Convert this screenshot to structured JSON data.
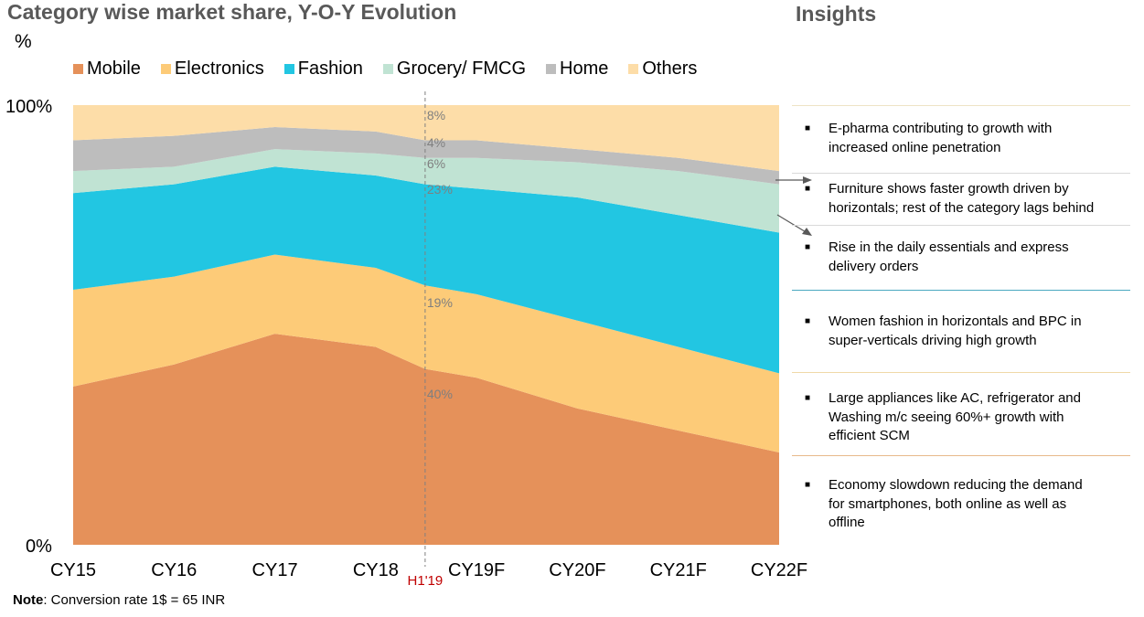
{
  "title": "Category wise market share, Y-O-Y Evolution",
  "unit": "%",
  "chart_data": {
    "type": "area",
    "stacked": true,
    "title": "Category wise market share, Y-O-Y Evolution",
    "ylabel": "%",
    "ylim": [
      0,
      100
    ],
    "yticks": [
      "0%",
      "100%"
    ],
    "categories": [
      "CY15",
      "CY16",
      "CY17",
      "CY18",
      "H1'19",
      "CY19F",
      "CY20F",
      "CY21F",
      "CY22F"
    ],
    "highlight_category": "H1'19",
    "highlight_color": "#C00000",
    "legend_position": "top",
    "grid": false,
    "series": [
      {
        "name": "Mobile",
        "color": "#E5915A",
        "values": [
          36,
          41,
          48,
          45,
          40,
          38,
          31,
          26,
          21
        ]
      },
      {
        "name": "Electronics",
        "color": "#FDCB78",
        "values": [
          22,
          20,
          18,
          18,
          19,
          19,
          20,
          19,
          18
        ]
      },
      {
        "name": "Fashion",
        "color": "#22C6E2",
        "values": [
          22,
          21,
          20,
          21,
          23,
          24,
          28,
          30,
          32
        ]
      },
      {
        "name": "Grocery/ FMCG",
        "color": "#C0E3D3",
        "values": [
          5,
          4,
          4,
          5,
          6,
          7,
          8,
          10,
          11
        ]
      },
      {
        "name": "Home",
        "color": "#BDBDBD",
        "values": [
          7,
          7,
          5,
          5,
          4,
          4,
          3,
          3,
          3
        ]
      },
      {
        "name": "Others",
        "color": "#FDDDA8",
        "values": [
          8,
          7,
          5,
          6,
          8,
          8,
          10,
          12,
          15
        ]
      }
    ],
    "data_labels": [
      "40%",
      "19%",
      "23%",
      "6%",
      "4%",
      "8%"
    ]
  },
  "note": {
    "label": "Note",
    "text": ": Conversion rate 1$ = 65 INR"
  },
  "insights": {
    "title": "Insights",
    "items": [
      {
        "lines": [
          "E-pharma contributing to growth with",
          "increased online penetration"
        ]
      },
      {
        "lines": [
          "Furniture shows faster growth driven by",
          "horizontals; rest of the category lags behind"
        ]
      },
      {
        "lines": [
          "Rise in the daily essentials and express",
          "delivery orders"
        ]
      },
      {
        "lines": [
          "Women fashion in horizontals and BPC in",
          "super-verticals driving high growth"
        ]
      },
      {
        "lines": [
          "Large appliances like AC, refrigerator and",
          "Washing m/c seeing 60%+ growth with",
          "efficient SCM"
        ]
      },
      {
        "lines": [
          "Economy slowdown reducing the demand",
          "for smartphones, both online as well as",
          "offline"
        ]
      }
    ],
    "bullet": "■"
  }
}
